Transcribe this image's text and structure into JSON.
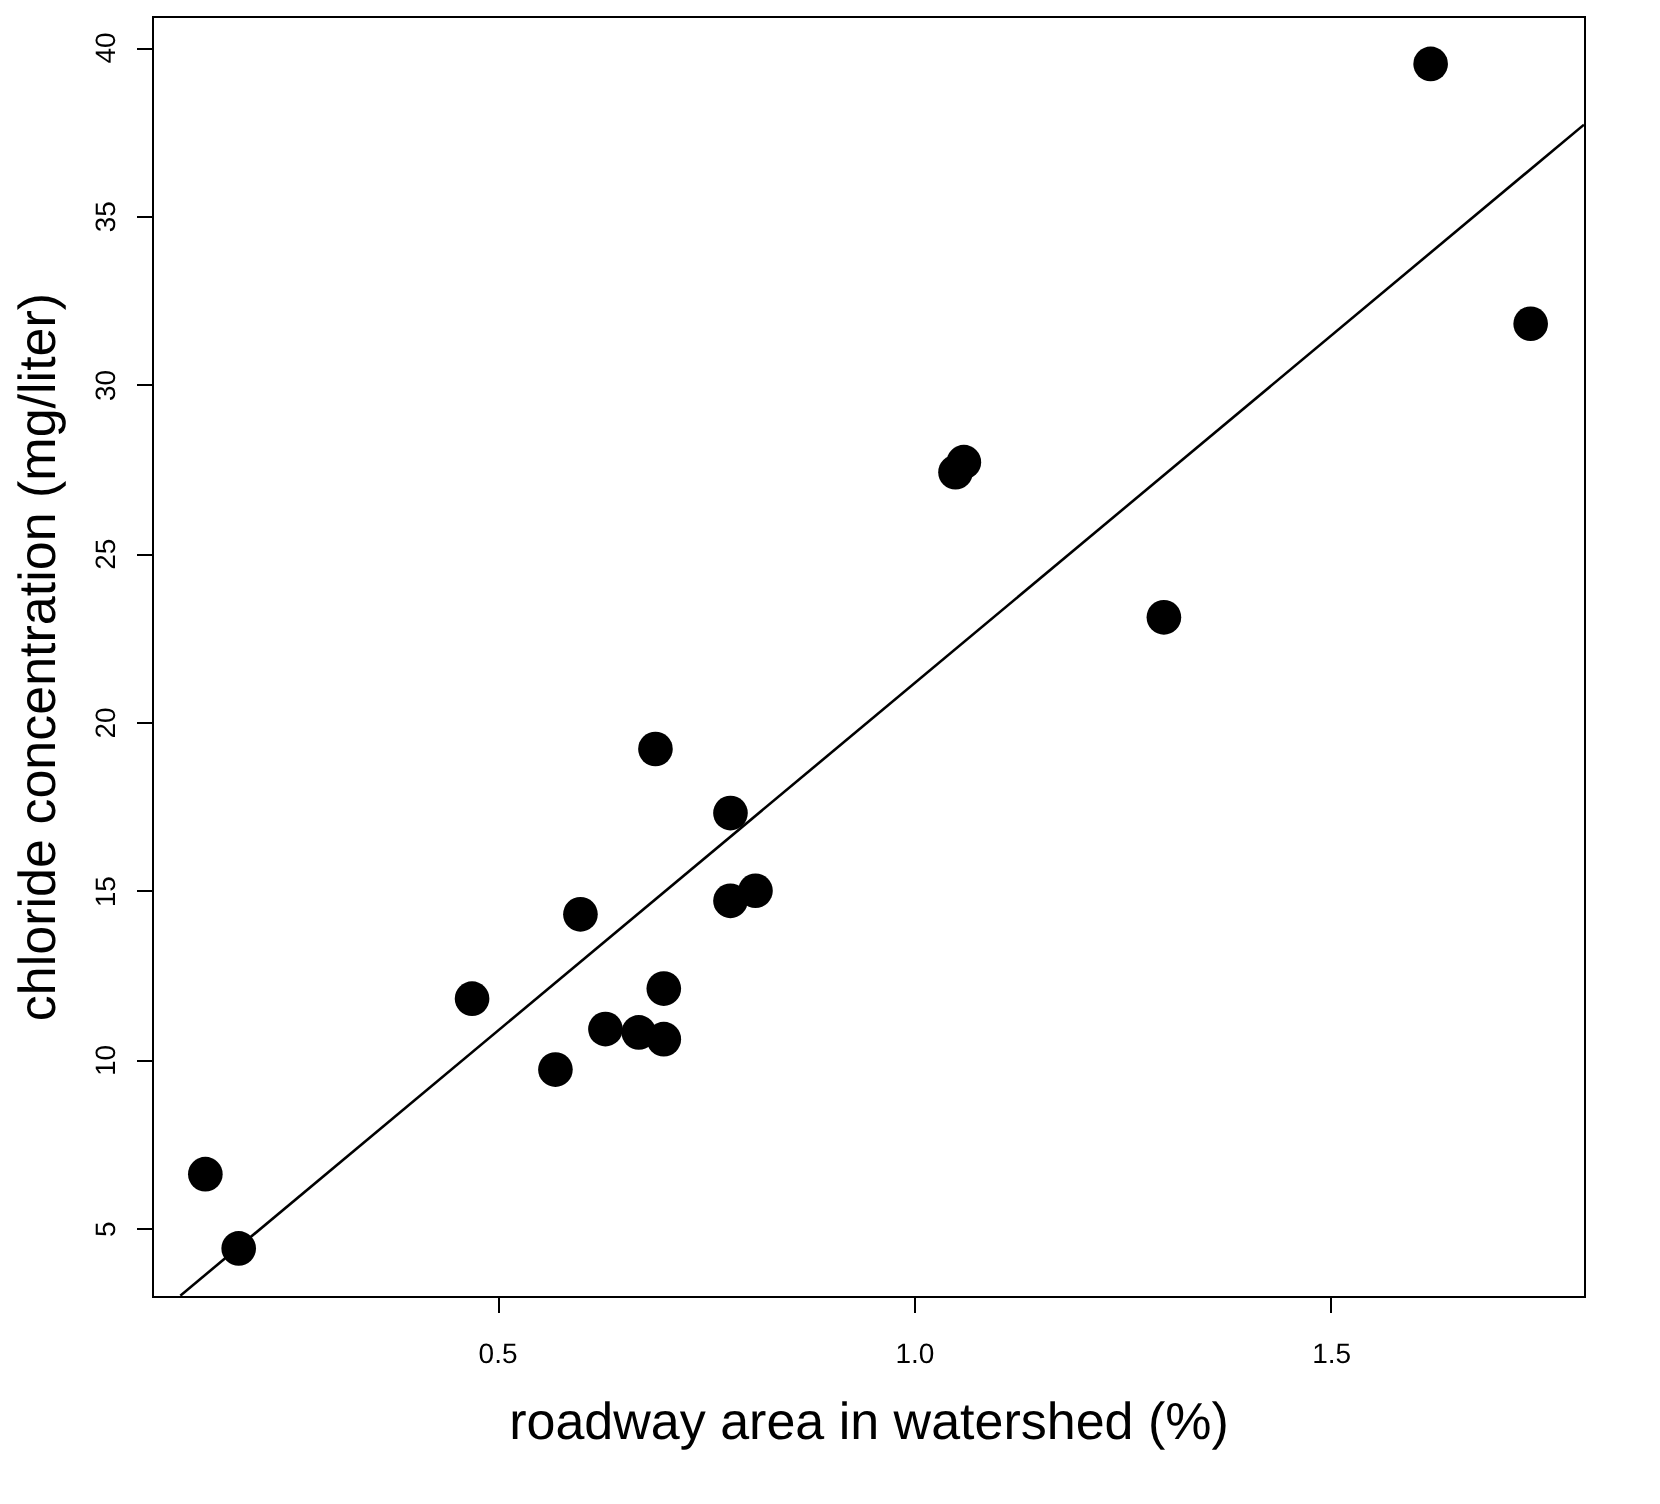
{
  "chart_data": {
    "type": "scatter",
    "xlabel": "roadway area in watershed (%)",
    "ylabel": "chloride concentration (mg/liter)",
    "xlim": [
      0.086,
      1.804
    ],
    "ylim": [
      2.99,
      40.92
    ],
    "xticks": [
      {
        "value": 0.5,
        "label": "0.5"
      },
      {
        "value": 1.0,
        "label": "1.0"
      },
      {
        "value": 1.5,
        "label": "1.5"
      }
    ],
    "yticks": [
      5,
      10,
      15,
      20,
      25,
      30,
      35,
      40
    ],
    "grid": false,
    "marker": "circle",
    "series": [
      {
        "color": "#000000",
        "x": [
          0.15,
          0.19,
          0.47,
          0.57,
          0.6,
          0.63,
          0.67,
          0.69,
          0.7,
          0.7,
          0.78,
          0.78,
          0.81,
          1.05,
          1.06,
          1.3,
          1.62,
          1.74
        ],
        "values": [
          6.6,
          4.4,
          11.8,
          9.7,
          14.3,
          10.9,
          10.8,
          19.2,
          12.1,
          10.6,
          17.3,
          14.7,
          15.0,
          27.4,
          27.7,
          23.1,
          39.5,
          31.8
        ]
      },
      {
        "type": "line",
        "color": "#000000",
        "marker": "none",
        "x": [
          0.12,
          1.804
        ],
        "values": [
          3.0,
          37.7
        ]
      }
    ]
  }
}
